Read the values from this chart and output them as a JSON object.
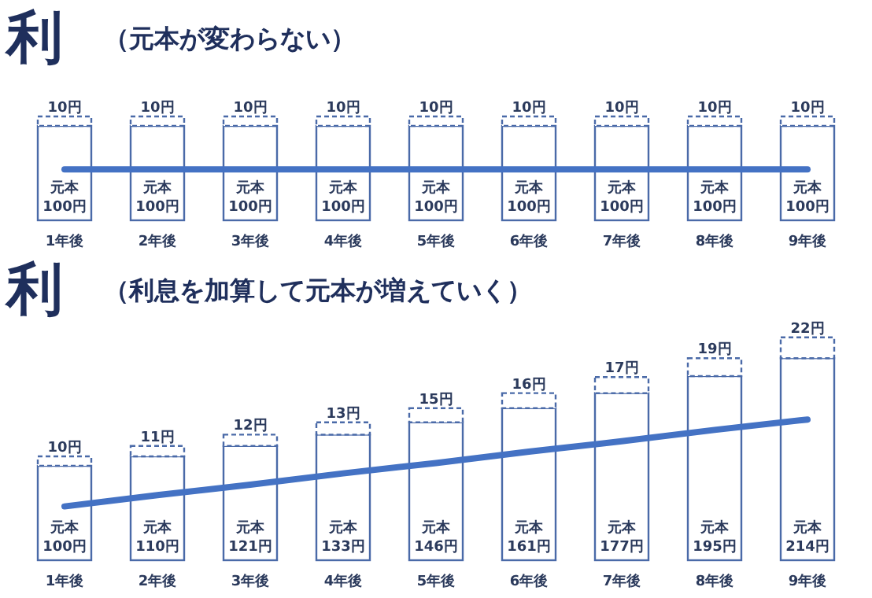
{
  "chart_data": [
    {
      "type": "bar",
      "title": "利",
      "subtitle": "（元本が変わらない）",
      "stacked": true,
      "categories": [
        "1年後",
        "2年後",
        "3年後",
        "4年後",
        "5年後",
        "6年後",
        "7年後",
        "8年後",
        "9年後"
      ],
      "series": [
        {
          "type": "line",
          "color": "#4472c4",
          "values": [
            54,
            54,
            54,
            54,
            54,
            54,
            54,
            54,
            54
          ]
        },
        {
          "color": "#4a6aa8",
          "values": [
            100,
            100,
            100,
            100,
            100,
            100,
            100,
            100,
            100
          ],
          "value_labels": [
            "元本\n100円",
            "元本\n100円",
            "元本\n100円",
            "元本\n100円",
            "元本\n100円",
            "元本\n100円",
            "元本\n100円",
            "元本\n100円",
            "元本\n100円"
          ]
        },
        {
          "color": "#4a6aa8",
          "line_style": "dashed",
          "values": [
            10,
            10,
            10,
            10,
            10,
            10,
            10,
            10,
            10
          ],
          "value_labels": [
            "10円",
            "10円",
            "10円",
            "10円",
            "10円",
            "10円",
            "10円",
            "10円",
            "10円"
          ]
        }
      ]
    },
    {
      "type": "bar",
      "title": "利",
      "subtitle": "（利息を加算して元本が増えていく）",
      "stacked": true,
      "categories": [
        "1年後",
        "2年後",
        "3年後",
        "4年後",
        "5年後",
        "6年後",
        "7年後",
        "8年後",
        "9年後"
      ],
      "series": [
        {
          "type": "line",
          "color": "#4472c4",
          "values": [
            57,
            69,
            80,
            92,
            103,
            115,
            126,
            138,
            149
          ]
        },
        {
          "color": "#4a6aa8",
          "values": [
            100,
            110,
            121,
            133,
            146,
            161,
            177,
            195,
            214
          ],
          "value_labels": [
            "元本\n100円",
            "元本\n110円",
            "元本\n121円",
            "元本\n133円",
            "元本\n146円",
            "元本\n161円",
            "元本\n177円",
            "元本\n195円",
            "元本\n214円"
          ]
        },
        {
          "color": "#4a6aa8",
          "line_style": "dashed",
          "values": [
            10,
            11,
            12,
            13,
            15,
            16,
            17,
            19,
            22
          ],
          "value_labels": [
            "10円",
            "11円",
            "12円",
            "13円",
            "15円",
            "16円",
            "17円",
            "19円",
            "22円"
          ]
        }
      ]
    }
  ]
}
